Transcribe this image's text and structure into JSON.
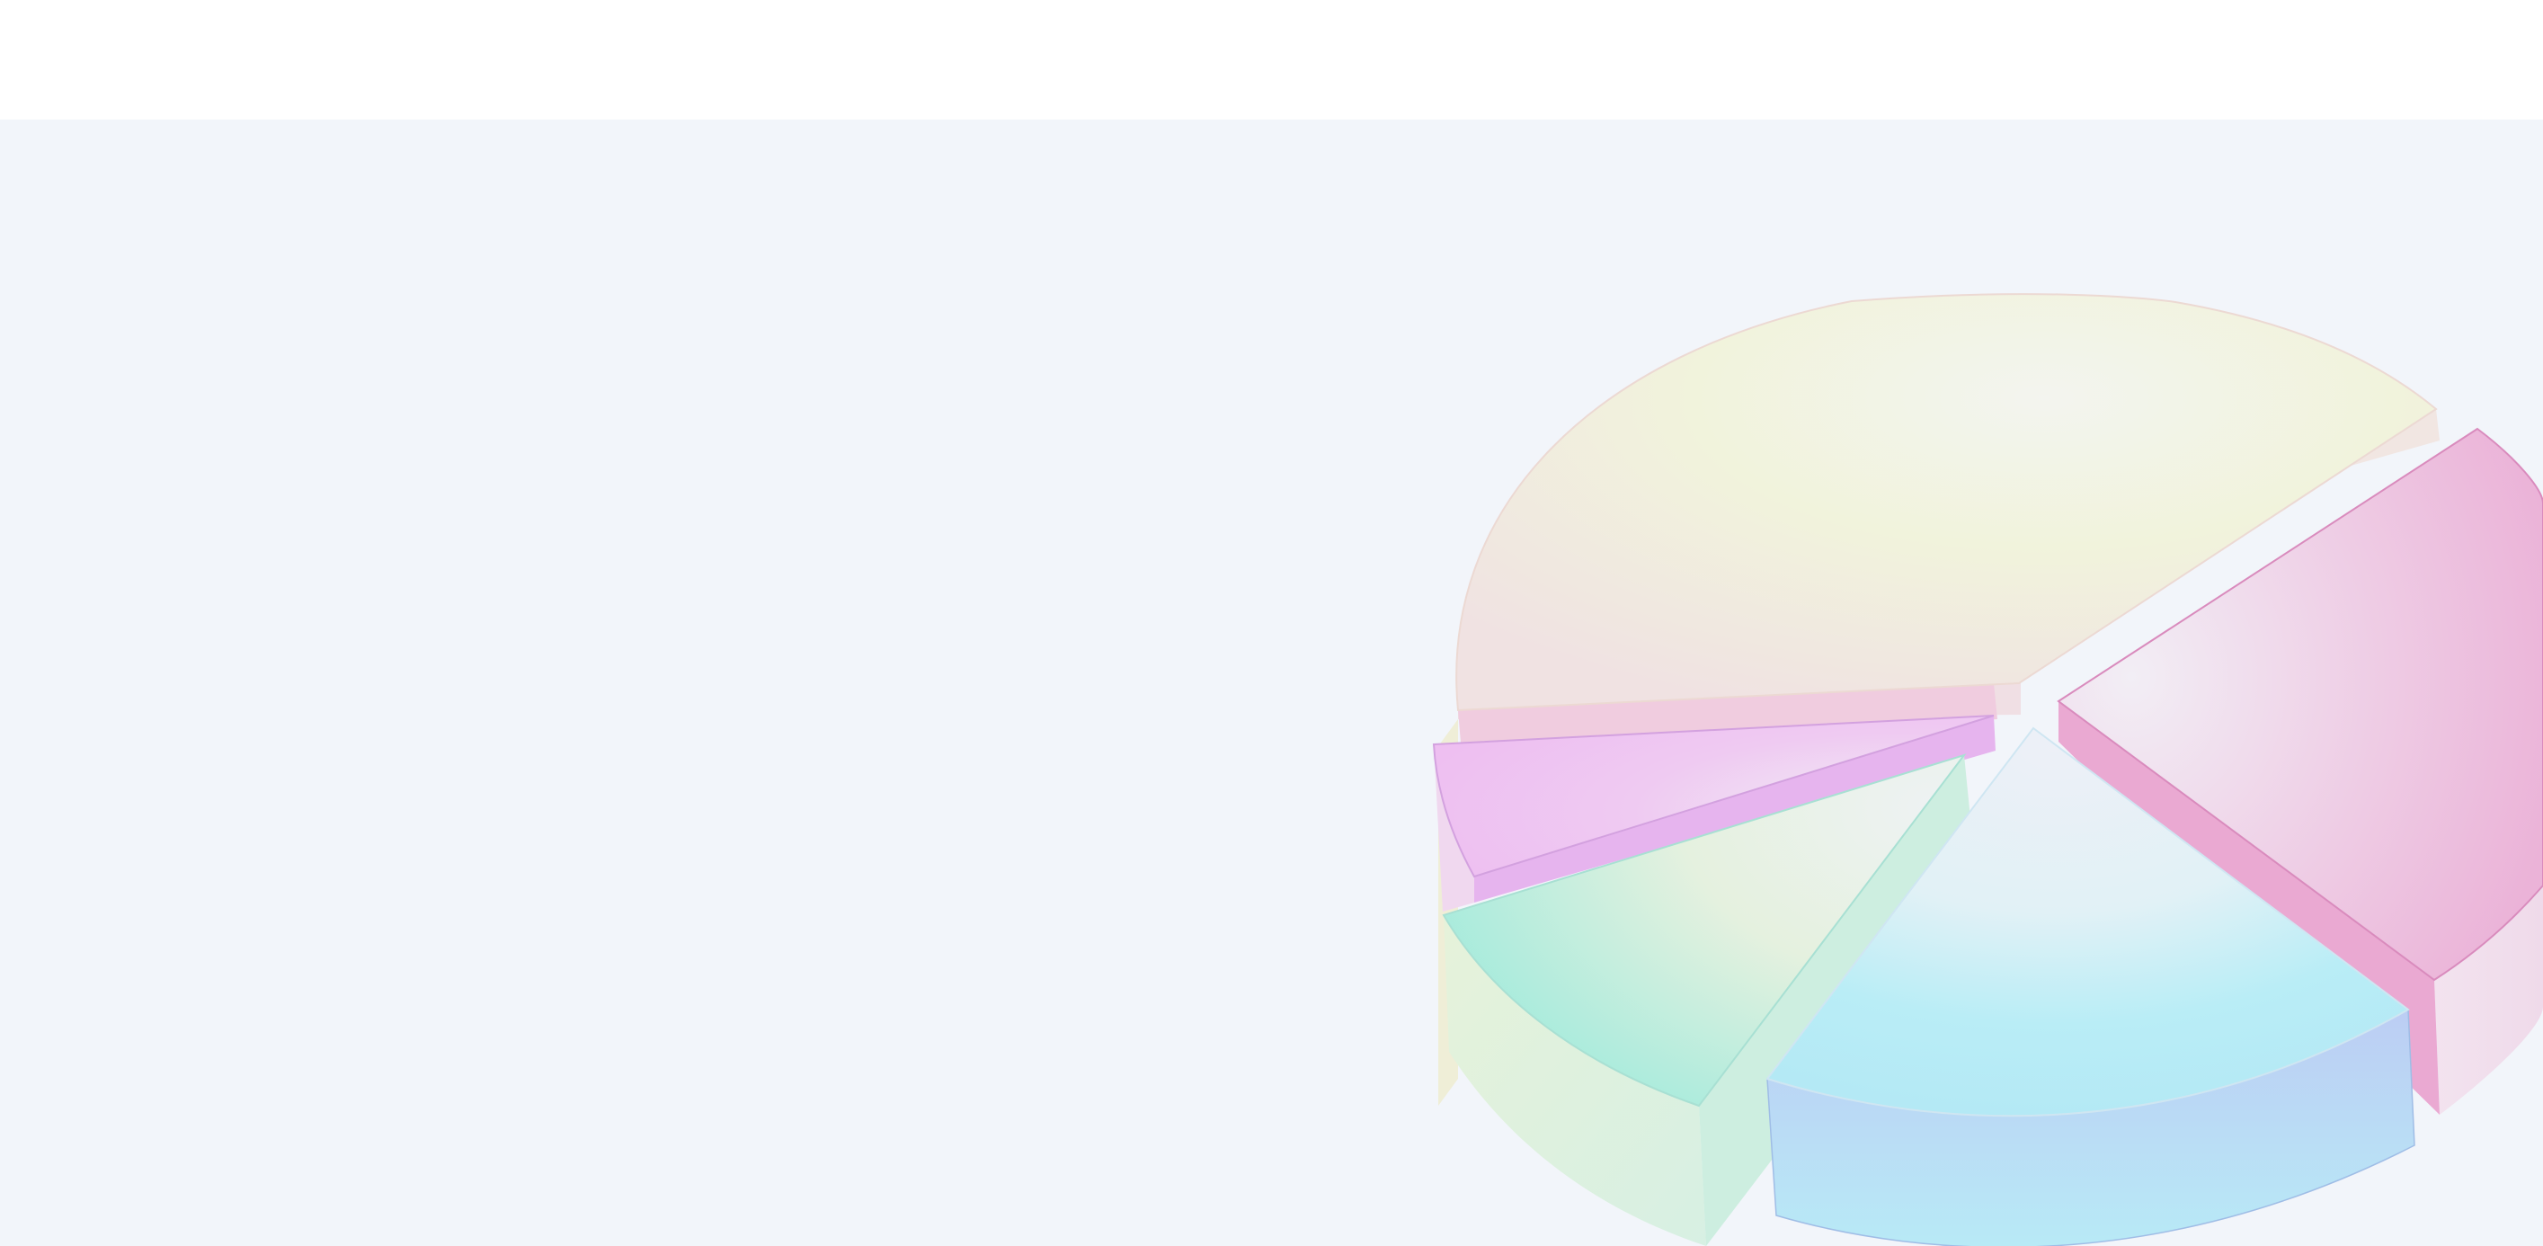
{
  "colors": {
    "top_bar": "#ffffff",
    "background": "#f2f5fa",
    "slice_yellow": "#f1f3dc",
    "slice_pink": "#ebb7d9",
    "slice_violet": "#eec2f2",
    "slice_mint": "#d7f0df",
    "slice_cyan": "#b6eaf3",
    "slice_blue": "#bcd0f4"
  },
  "illustration": {
    "icon": "3d-pie-chart-icon",
    "slice_count": 5
  }
}
